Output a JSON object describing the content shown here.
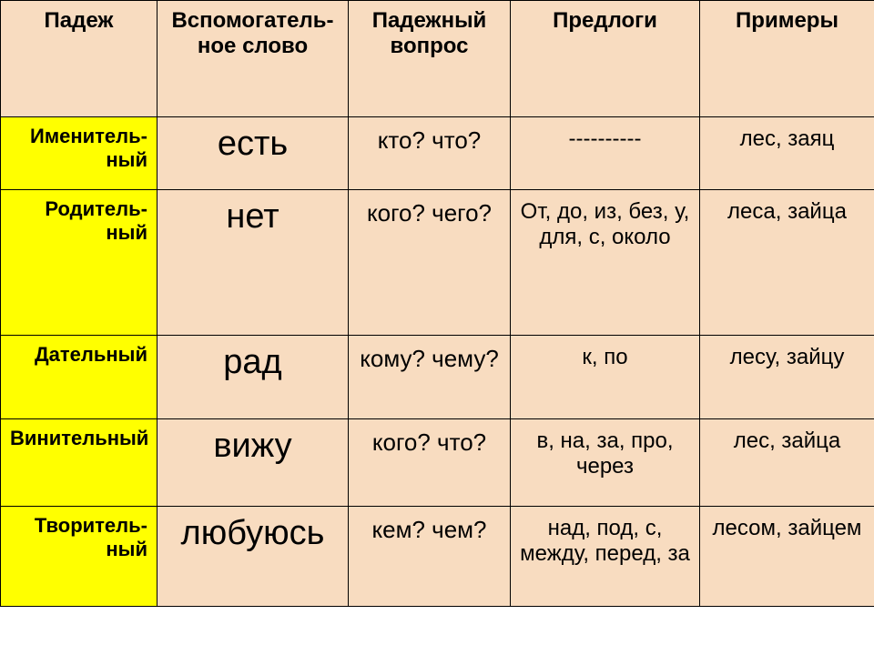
{
  "colors": {
    "header_bg": "#f8dcc0",
    "cell_bg": "#f8dcc0",
    "case_bg": "#ffff00",
    "border": "#000000",
    "text": "#000000"
  },
  "columns": {
    "c0": "Падеж",
    "c1": "Вспомогатель-ное слово",
    "c2": "Падежный вопрос",
    "c3": "Предлоги",
    "c4": "Примеры"
  },
  "rows": {
    "r0": {
      "case": "Именитель-\nный",
      "helper": "есть",
      "question": "кто? что?",
      "prep": "----------",
      "example": "лес, заяц"
    },
    "r1": {
      "case": "Родитель-\nный",
      "helper": "нет",
      "question": "кого? чего?",
      "prep": "От, до, из, без, у, для, с, около",
      "example": "леса, зайца"
    },
    "r2": {
      "case": "Дательный",
      "helper": "рад",
      "question": "кому? чему?",
      "prep": "к, по",
      "example": "лесу, зайцу"
    },
    "r3": {
      "case": "Винительный",
      "helper": "вижу",
      "question": "кого? что?",
      "prep": "в, на, за, про, через",
      "example": "лес, зайца"
    },
    "r4": {
      "case": "Творитель-\nный",
      "helper": "любуюсь",
      "question": "кем? чем?",
      "prep": "над, под, с, между, перед, за",
      "example": "лесом, зайцем"
    }
  }
}
